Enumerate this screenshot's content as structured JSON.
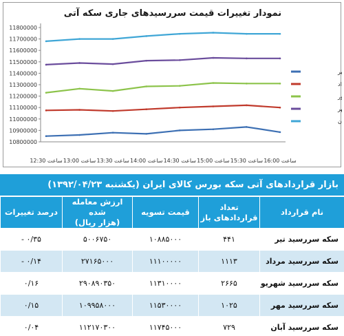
{
  "chart_data": {
    "type": "line",
    "title": "نمودار تغییرات قیمت سررسیدهای جاری سکه آتی",
    "categories": [
      "ساعت 12:30",
      "ساعت 13:00",
      "ساعت 13:30",
      "ساعت 14:00",
      "ساعت 14:30",
      "ساعت 15:00",
      "ساعت 15:30",
      "ساعت 16:00"
    ],
    "y_ticks": [
      "10800000",
      "10900000",
      "11000000",
      "11100000",
      "11200000",
      "11300000",
      "11400000",
      "11500000",
      "11600000",
      "11700000",
      "11800000"
    ],
    "ylim": [
      10800000,
      11800000
    ],
    "grid": false,
    "legend_position": "right",
    "series": [
      {
        "name": "سررسید تیر",
        "color": "#3c6fb3",
        "values": [
          10850000,
          10860000,
          10880000,
          10870000,
          10900000,
          10910000,
          10930000,
          10885000
        ]
      },
      {
        "name": "سررسید مرداد",
        "color": "#c0392b",
        "values": [
          11075000,
          11080000,
          11070000,
          11085000,
          11100000,
          11110000,
          11120000,
          11100000
        ]
      },
      {
        "name": "سررسید شهریور",
        "color": "#8cc34a",
        "values": [
          11230000,
          11265000,
          11245000,
          11285000,
          11290000,
          11315000,
          11310000,
          11310000
        ]
      },
      {
        "name": "سررسید مهر",
        "color": "#6a4c9c",
        "values": [
          11475000,
          11490000,
          11480000,
          11510000,
          11515000,
          11535000,
          11530000,
          11530000
        ]
      },
      {
        "name": "سررسید آبان",
        "color": "#3fa6d6",
        "values": [
          11680000,
          11700000,
          11700000,
          11725000,
          11745000,
          11755000,
          11745000,
          11745000
        ]
      }
    ]
  },
  "banner": "بازار قراردادهای آتی سکه بورس کالای ایران (یکشنبه ۱۳۹۲/۰۴/۲۳)",
  "table": {
    "headers": {
      "name": "نام قرارداد",
      "count_line1": "تعداد",
      "count_line2": "قراردادهای باز",
      "price": "قیمت تسویه",
      "value_line1": "ارزش معامله شده",
      "value_line2": "(هزار ریال)",
      "change": "درصد تغییرات"
    },
    "rows": [
      {
        "name": "سکه سررسید تیر",
        "count": "۴۴۱",
        "price": "۱۰۸۸۵۰۰۰",
        "value": "۵۰۰۶۷۵۰",
        "change": "۰/۳۵ -"
      },
      {
        "name": "سکه سررسید مرداد",
        "count": "۱۱۱۳",
        "price": "۱۱۱۰۰۰۰۰",
        "value": "۲۷۱۶۵۰۰۰",
        "change": "۰/۱۴ -"
      },
      {
        "name": "سکه سررسید شهریور",
        "count": "۲۶۶۵",
        "price": "۱۱۳۱۰۰۰۰",
        "value": "۲۹۰۸۹۰۳۵۰",
        "change": "۰/۱۶"
      },
      {
        "name": "سکه سررسید مهر",
        "count": "۱۰۲۵",
        "price": "۱۱۵۳۰۰۰۰",
        "value": "۱۰۹۹۵۸۰۰۰",
        "change": "۰/۱۵"
      },
      {
        "name": "سکه سررسید آبان",
        "count": "۷۲۹",
        "price": "۱۱۷۴۵۰۰۰",
        "value": "۱۱۲۱۷۰۳۰۰",
        "change": "۰/۰۴"
      }
    ]
  }
}
